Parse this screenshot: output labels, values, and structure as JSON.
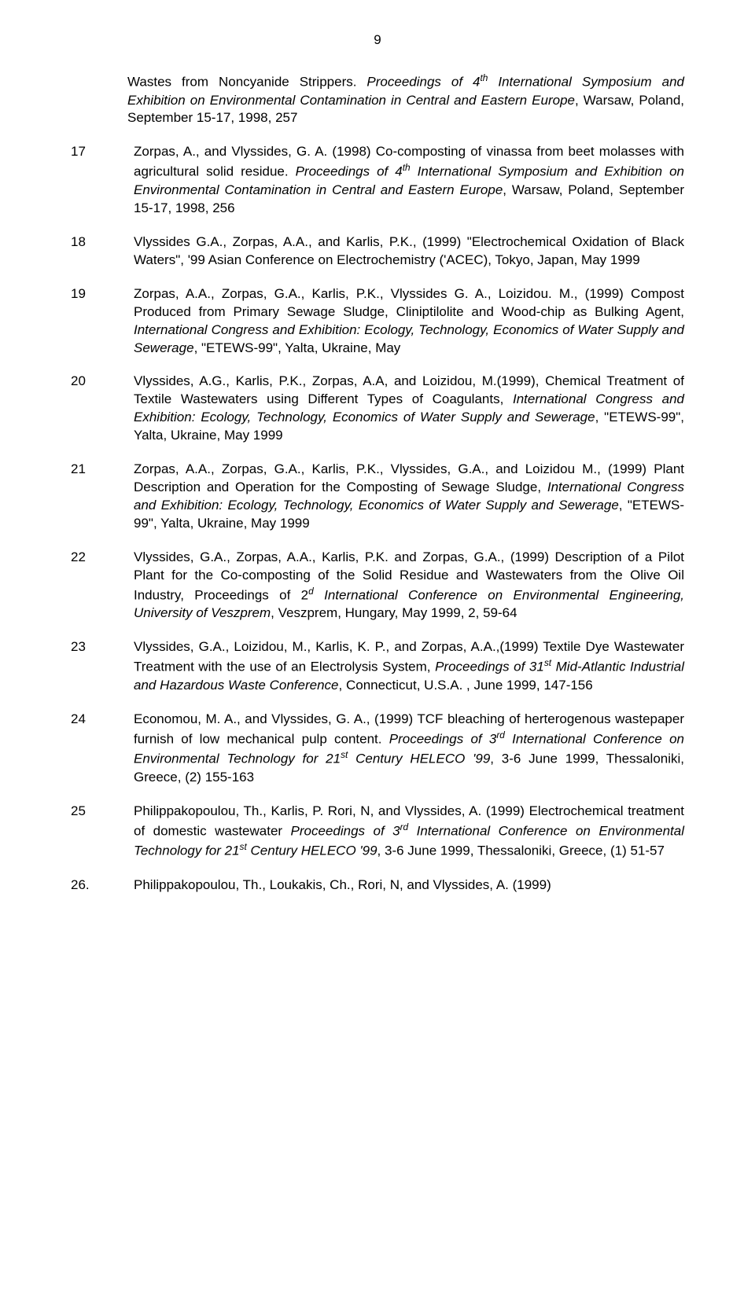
{
  "page": {
    "number": "9",
    "background_color": "#ffffff",
    "text_color": "#000000",
    "font_family": "Arial",
    "font_size_pt": 12
  },
  "leadin": {
    "pre": "Wastes from Noncyanide Strippers. ",
    "italic": "Proceedings of 4",
    "sup": "th",
    "italic2": " International Symposium and Exhibition on Environmental Contamination in Central and Eastern Europe",
    "post": ", Warsaw, Poland, September 15-17, 1998, 257"
  },
  "items": [
    {
      "num": "17",
      "segments": [
        {
          "t": "plain",
          "v": "Zorpas, A., and Vlyssides, G. A. (1998) Co-composting of vinassa from beet molasses with agricultural solid residue. "
        },
        {
          "t": "italic",
          "v": "Proceedings of 4"
        },
        {
          "t": "sup",
          "v": "th"
        },
        {
          "t": "italic",
          "v": " International Symposium and Exhibition on Environmental Contamination in Central and Eastern Europe"
        },
        {
          "t": "plain",
          "v": ", Warsaw, Poland, September 15-17, 1998, 256"
        }
      ]
    },
    {
      "num": "18",
      "segments": [
        {
          "t": "plain",
          "v": "Vlyssides G.A., Zorpas, A.A., and Karlis, P.K., (1999) \"Electrochemical Oxidation of Black Waters\", '99 Asian Conference on Electrochemistry ('ACEC), Tokyo, Japan, May 1999"
        }
      ]
    },
    {
      "num": "19",
      "segments": [
        {
          "t": "plain",
          "v": "Zorpas, A.A., Zorpas, G.A., Karlis, P.K., Vlyssides G. A., Loizidou. M., (1999) Compost Produced from Primary Sewage Sludge, Cliniptilolite and Wood-chip as Bulking Agent, "
        },
        {
          "t": "italic",
          "v": "International Congress and Exhibition: Ecology, Technology, Economics of Water Supply and Sewerage"
        },
        {
          "t": "plain",
          "v": ", \"ETEWS-99\", Yalta, Ukraine, May"
        }
      ]
    },
    {
      "num": "20",
      "segments": [
        {
          "t": "plain",
          "v": "Vlyssides, A.G., Karlis, P.K., Zorpas, A.A, and Loizidou, M.(1999), Chemical Treatment of Textile Wastewaters using Different Types of Coagulants, "
        },
        {
          "t": "italic",
          "v": "International Congress and Exhibition: Ecology, Technology, Economics of Water Supply and Sewerage"
        },
        {
          "t": "plain",
          "v": ", \"ETEWS-99\", Yalta, Ukraine, May 1999"
        }
      ]
    },
    {
      "num": "21",
      "segments": [
        {
          "t": "plain",
          "v": "Zorpas, A.A., Zorpas, G.A., Karlis, P.K., Vlyssides, G.A., and Loizidou M., (1999) Plant Description and Operation for the Composting of Sewage Sludge, "
        },
        {
          "t": "italic",
          "v": "International Congress and Exhibition: Ecology, Technology, Economics of Water Supply and Sewerage"
        },
        {
          "t": "plain",
          "v": ", \"ETEWS-99\", Yalta, Ukraine, May 1999"
        }
      ]
    },
    {
      "num": "22",
      "segments": [
        {
          "t": "plain",
          "v": "Vlyssides, G.A., Zorpas, A.A., Karlis, P.K. and Zorpas, G.A., (1999) Description of a Pilot Plant for the Co-composting of the Solid Residue and Wastewaters from the Olive Oil Industry, Proceedings of 2"
        },
        {
          "t": "sup",
          "v": "d"
        },
        {
          "t": "plain",
          "v": " "
        },
        {
          "t": "italic",
          "v": "International Conference on Environmental Engineering, University of Veszprem"
        },
        {
          "t": "plain",
          "v": ", Veszprem, Hungary, May 1999, 2, 59-64"
        }
      ]
    },
    {
      "num": "23",
      "segments": [
        {
          "t": "plain",
          "v": "Vlyssides, G.A., Loizidou, M., Karlis, K. P., and Zorpas, A.A.,(1999) Textile Dye Wastewater Treatment with the use of an Electrolysis System, "
        },
        {
          "t": "italic",
          "v": "Proceedings of 31"
        },
        {
          "t": "sup",
          "v": "st"
        },
        {
          "t": "italic",
          "v": " Mid-Atlantic Industrial and Hazardous Waste Conference"
        },
        {
          "t": "plain",
          "v": ", Connecticut, U.S.A. , June 1999, 147-156"
        }
      ]
    },
    {
      "num": "24",
      "segments": [
        {
          "t": "plain",
          "v": "Economou, M. A., and  Vlyssides, G. A., (1999) TCF bleaching of herterogenous wastepaper furnish of low mechanical pulp content. "
        },
        {
          "t": "italic",
          "v": "Proceedings of 3"
        },
        {
          "t": "sup",
          "v": "rd"
        },
        {
          "t": "italic",
          "v": " International Conference on Environmental Technology for 21"
        },
        {
          "t": "sup",
          "v": "st"
        },
        {
          "t": "italic",
          "v": " Century HELECO '99"
        },
        {
          "t": "plain",
          "v": ", 3-6 June 1999, Thessaloniki, Greece, (2) 155-163"
        }
      ]
    },
    {
      "num": "25",
      "segments": [
        {
          "t": "plain",
          "v": "Philippakopoulou, Th., Karlis, P. Rori, N, and Vlyssides, A. (1999) Electrochemical treatment of domestic wastewater "
        },
        {
          "t": "italic",
          "v": "Proceedings of 3"
        },
        {
          "t": "sup",
          "v": "rd"
        },
        {
          "t": "italic",
          "v": " International Conference on Environmental Technology for 21"
        },
        {
          "t": "sup",
          "v": "st"
        },
        {
          "t": "italic",
          "v": " Century HELECO '99"
        },
        {
          "t": "plain",
          "v": ", 3-6 June 1999, Thessaloniki, Greece, (1) 51-57"
        }
      ]
    },
    {
      "num": "26.",
      "segments": [
        {
          "t": "plain",
          "v": "Philippakopoulou, Th., Loukakis, Ch., Rori, N, and Vlyssides, A. (1999)"
        }
      ]
    }
  ]
}
